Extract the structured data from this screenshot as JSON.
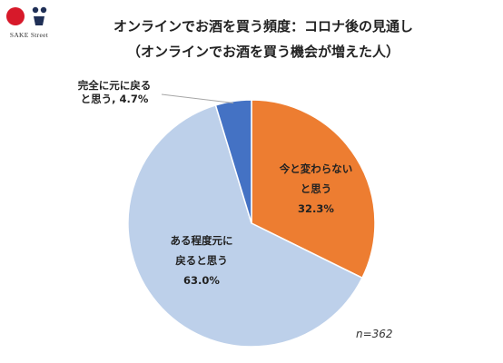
{
  "brand": {
    "name": "SAKE Street",
    "colors": {
      "red": "#d7192a",
      "navy": "#1f2f56"
    }
  },
  "title_line1": "オンラインでお酒を買う頻度：コロナ後の見通し",
  "title_line2": "（オンラインでお酒を買う機会が増えた人）",
  "sample_size": "n=362",
  "chart_data": {
    "type": "pie",
    "start_angle_deg": 0,
    "direction": "clockwise",
    "slices": [
      {
        "label_lines": [
          "今と変わらない",
          "と思う"
        ],
        "value": 32.3,
        "value_text": "32.3%",
        "color": "#ed7d31"
      },
      {
        "label_lines": [
          "ある程度元に",
          "戻ると思う"
        ],
        "value": 63.0,
        "value_text": "63.0%",
        "color": "#bdd0ea"
      },
      {
        "label_lines": [
          "完全に元に戻る",
          "と思う, 4.7%"
        ],
        "value": 4.7,
        "value_text": "",
        "color": "#4472c4"
      }
    ]
  }
}
